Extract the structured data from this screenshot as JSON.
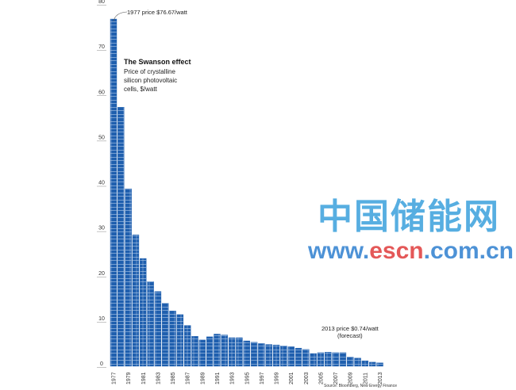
{
  "chart_data": {
    "type": "bar",
    "title": "The Swanson effect",
    "subtitle": "Price of crystalline silicon photovoltaic cells, $/watt",
    "ylim": [
      0,
      80
    ],
    "yticks": [
      0,
      10,
      20,
      30,
      40,
      50,
      60,
      70,
      80
    ],
    "grid": false,
    "bar_color": "#1f5fae",
    "categories": [
      "1977",
      "1978",
      "1979",
      "1980",
      "1981",
      "1982",
      "1983",
      "1984",
      "1985",
      "1986",
      "1987",
      "1988",
      "1989",
      "1990",
      "1991",
      "1992",
      "1993",
      "1994",
      "1995",
      "1996",
      "1997",
      "1998",
      "1999",
      "2000",
      "2001",
      "2002",
      "2003",
      "2004",
      "2005",
      "2006",
      "2007",
      "2008",
      "2009",
      "2010",
      "2011",
      "2012",
      "2013"
    ],
    "xtick_labels": [
      "1977",
      "1979",
      "1981",
      "1983",
      "1985",
      "1987",
      "1989",
      "1991",
      "1993",
      "1995",
      "1997",
      "1999",
      "2001",
      "2003",
      "2005",
      "2007",
      "2009",
      "2011",
      "2013"
    ],
    "values": [
      76.67,
      57.2,
      39.2,
      29.0,
      23.8,
      18.7,
      16.5,
      13.9,
      12.2,
      11.4,
      9.0,
      6.6,
      5.8,
      6.5,
      7.1,
      6.9,
      6.3,
      6.3,
      5.6,
      5.3,
      5.0,
      4.8,
      4.7,
      4.5,
      4.3,
      4.0,
      3.7,
      2.8,
      3.0,
      3.1,
      3.0,
      3.0,
      2.0,
      1.8,
      1.2,
      0.9,
      0.74
    ],
    "annotations": {
      "first": "1977 price $76.67/watt",
      "last": "2013 price $0.74/watt",
      "last_note": "(forecast)"
    },
    "source": "Source: Bloomberg, New Energy Finance"
  },
  "watermark": {
    "cn": "中国储能网",
    "url_a": "www.",
    "url_b": "escn",
    "url_c": ".com.cn"
  }
}
